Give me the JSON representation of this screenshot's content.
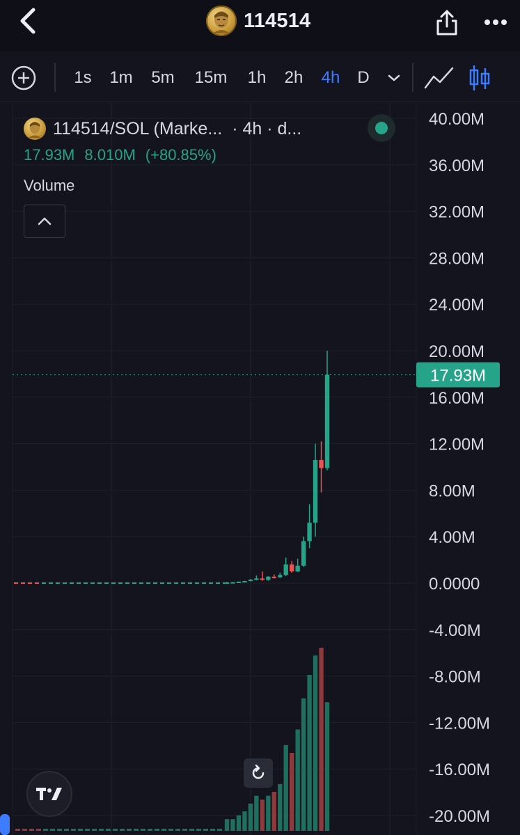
{
  "header": {
    "title": "114514",
    "back_icon": "chevron-left-icon",
    "share_icon": "share-icon",
    "more_icon": "more-horizontal-icon"
  },
  "timeframes": {
    "items": [
      {
        "label": "1s",
        "active": false
      },
      {
        "label": "1m",
        "active": false
      },
      {
        "label": "5m",
        "active": false
      },
      {
        "label": "15m",
        "active": false
      },
      {
        "label": "1h",
        "active": false
      },
      {
        "label": "2h",
        "active": false
      },
      {
        "label": "4h",
        "active": true
      },
      {
        "label": "D",
        "active": false
      }
    ]
  },
  "legend": {
    "symbol": "114514/SOL (Marke...",
    "interval": "· 4h · d...",
    "price": "17.93M",
    "change": "8.010M",
    "change_pct": "(+80.85%)",
    "volume_label": "Volume"
  },
  "colors": {
    "up": "#26a489",
    "down": "#ef5350",
    "accent": "#3d7bff",
    "background": "#13141d",
    "grid": "#1f212b"
  },
  "chart_data": {
    "type": "candlestick",
    "interval": "4h",
    "y_ticks": [
      "40.00M",
      "36.00M",
      "32.00M",
      "28.00M",
      "24.00M",
      "20.00M",
      "16.00M",
      "12.00M",
      "8.00M",
      "4.00M",
      "0.0000",
      "-4.00M",
      "-8.00M",
      "-12.00M",
      "-16.00M",
      "-20.00M"
    ],
    "ylim": [
      -20000000,
      40000000
    ],
    "last_price": 17930000,
    "last_price_label": "17.93M",
    "candles": [
      {
        "o": 0.05,
        "h": 0.1,
        "l": 0.02,
        "c": 0.06,
        "up": true
      },
      {
        "o": 0.06,
        "h": 0.1,
        "l": 0.03,
        "c": 0.08,
        "up": true
      },
      {
        "o": 0.08,
        "h": 0.14,
        "l": 0.05,
        "c": 0.12,
        "up": true
      },
      {
        "o": 0.12,
        "h": 0.2,
        "l": 0.09,
        "c": 0.18,
        "up": true
      },
      {
        "o": 0.18,
        "h": 0.35,
        "l": 0.15,
        "c": 0.3,
        "up": true
      },
      {
        "o": 0.3,
        "h": 0.65,
        "l": 0.25,
        "c": 0.4,
        "up": true
      },
      {
        "o": 0.4,
        "h": 1.0,
        "l": 0.2,
        "c": 0.28,
        "up": false
      },
      {
        "o": 0.28,
        "h": 0.6,
        "l": 0.2,
        "c": 0.55,
        "up": true
      },
      {
        "o": 0.55,
        "h": 0.75,
        "l": 0.4,
        "c": 0.5,
        "up": false
      },
      {
        "o": 0.5,
        "h": 0.9,
        "l": 0.45,
        "c": 0.7,
        "up": true
      },
      {
        "o": 0.7,
        "h": 2.2,
        "l": 0.6,
        "c": 1.6,
        "up": true
      },
      {
        "o": 1.6,
        "h": 1.9,
        "l": 0.9,
        "c": 1.0,
        "up": false
      },
      {
        "o": 1.0,
        "h": 2.1,
        "l": 0.95,
        "c": 1.5,
        "up": true
      },
      {
        "o": 1.5,
        "h": 4.0,
        "l": 1.4,
        "c": 3.6,
        "up": true
      },
      {
        "o": 3.6,
        "h": 6.8,
        "l": 3.0,
        "c": 5.2,
        "up": true
      },
      {
        "o": 5.2,
        "h": 12.0,
        "l": 4.0,
        "c": 10.6,
        "up": true
      },
      {
        "o": 10.6,
        "h": 12.2,
        "l": 7.8,
        "c": 9.9,
        "up": false
      },
      {
        "o": 9.9,
        "h": 20.0,
        "l": 9.7,
        "c": 17.93,
        "up": true
      }
    ],
    "volume": [
      0.3,
      0.3,
      0.4,
      0.5,
      0.7,
      0.9,
      0.8,
      0.9,
      1.0,
      1.2,
      2.2,
      2.0,
      2.6,
      3.4,
      4.0,
      4.5,
      4.7,
      3.3
    ],
    "volume_up": [
      true,
      true,
      true,
      true,
      true,
      true,
      false,
      true,
      false,
      true,
      true,
      false,
      true,
      true,
      true,
      true,
      false,
      true
    ],
    "early_flat_price": 0.0
  }
}
